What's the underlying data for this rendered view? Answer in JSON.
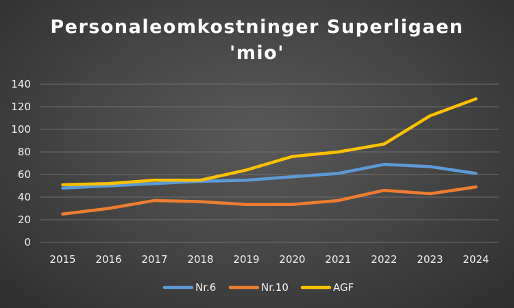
{
  "chart_data": {
    "type": "line",
    "title_line1": "Personaleomkostninger Superligaen",
    "title_line2": "'mio'",
    "x": [
      "2015",
      "2016",
      "2017",
      "2018",
      "2019",
      "2020",
      "2021",
      "2022",
      "2023",
      "2024"
    ],
    "series": [
      {
        "name": "Nr.6",
        "color": "#5b9bd5",
        "values": [
          48,
          50,
          52,
          54,
          55,
          58,
          61,
          69,
          67,
          61
        ]
      },
      {
        "name": "Nr.10",
        "color": "#ed7d31",
        "values": [
          25,
          30,
          37,
          36,
          33.5,
          33.5,
          37,
          46,
          43,
          49
        ]
      },
      {
        "name": "AGF",
        "color": "#ffc000",
        "values": [
          51,
          52,
          55,
          55,
          64,
          76,
          80,
          87,
          112,
          127
        ]
      }
    ],
    "ylim": [
      0,
      140
    ],
    "yticks": [
      "0",
      "20",
      "40",
      "60",
      "80",
      "100",
      "120",
      "140"
    ],
    "grid": true,
    "legend": "bottom"
  }
}
